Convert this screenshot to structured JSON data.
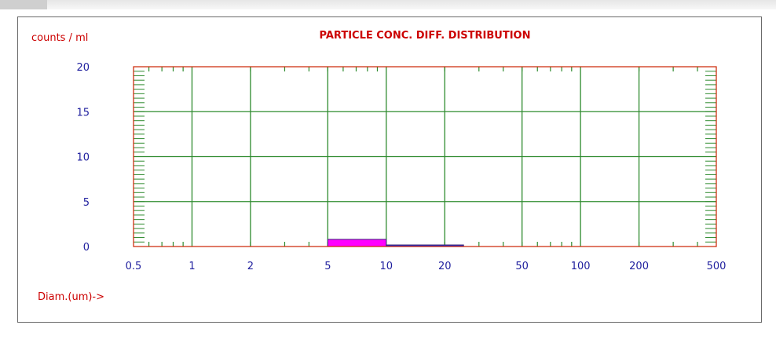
{
  "chart_data": {
    "type": "bar",
    "title": "PARTICLE CONC. DIFF. DISTRIBUTION",
    "ylabel": "counts / ml",
    "xlabel": "Diam.(um)->",
    "x_scale": "log",
    "xlim": [
      0.5,
      500
    ],
    "ylim": [
      0,
      20
    ],
    "x_ticks": [
      "0.5",
      "1",
      "2",
      "5",
      "10",
      "20",
      "50",
      "100",
      "200",
      "500"
    ],
    "y_ticks": [
      "0",
      "5",
      "10",
      "15",
      "20"
    ],
    "grid": true,
    "bins": [
      {
        "x0": 5,
        "x1": 10,
        "value": 0.8,
        "color": "#ff00ff"
      },
      {
        "x0": 10,
        "x1": 25,
        "value": 0.1,
        "color": "#2a2acc"
      }
    ],
    "colors": {
      "grid": "#2e8b2e",
      "plot_border": "#cc2200",
      "title": "#cc0000",
      "tick_text": "#1f1f9e"
    }
  }
}
